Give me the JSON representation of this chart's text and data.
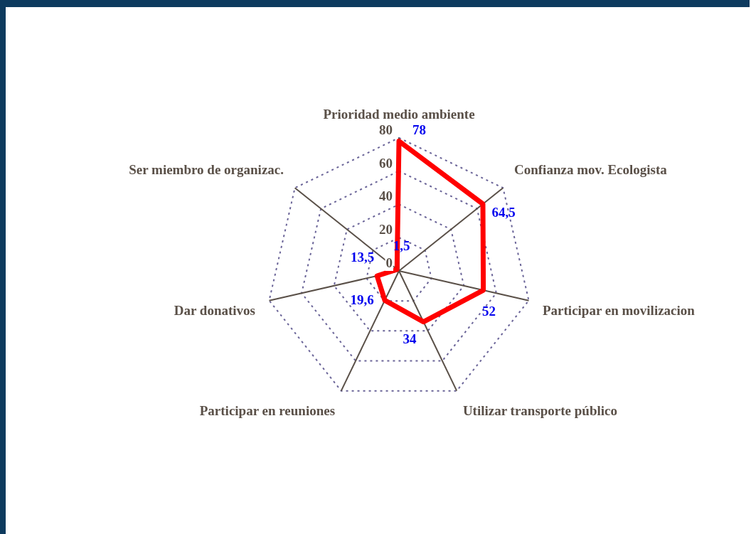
{
  "chart_data": {
    "type": "radar",
    "categories": [
      "Prioridad medio ambiente",
      "Confianza mov. Ecologista",
      "Participar en movilizacion",
      "Utilizar transporte público",
      "Participar en reuniones",
      "Dar donativos",
      "Ser miembro de organizac."
    ],
    "series": [
      {
        "color": "#ff0000",
        "values": [
          78,
          64.5,
          52,
          34,
          19.6,
          13.5,
          1.5
        ],
        "value_labels": [
          "78",
          "64,5",
          "52",
          "34",
          "19,6",
          "13,5",
          "1,5"
        ]
      }
    ],
    "ylim": [
      0,
      80
    ],
    "yticks": [
      0,
      20,
      40,
      60,
      80
    ],
    "grid": true,
    "legend": false,
    "marker": "none",
    "line_style": "solid"
  }
}
